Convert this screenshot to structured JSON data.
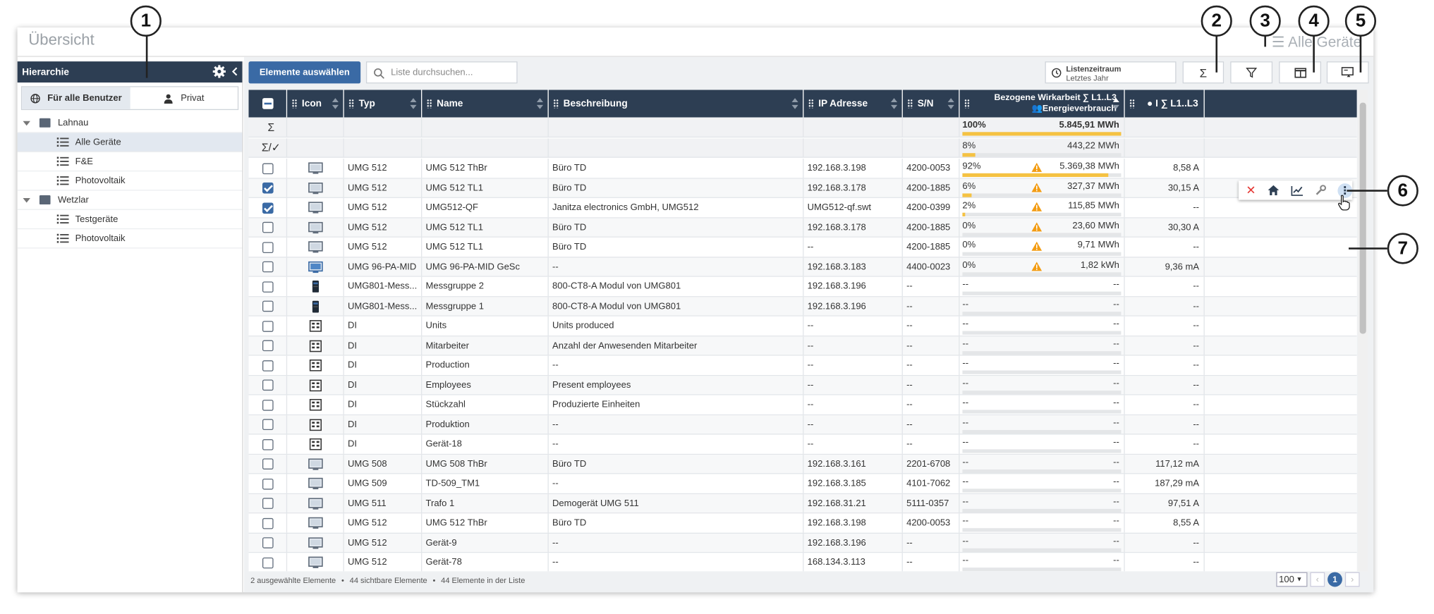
{
  "window": {
    "title": "Übersicht",
    "title_right": "Alle Geräte"
  },
  "sidebar": {
    "header": "Hierarchie",
    "scope_tabs": [
      {
        "label": "Für alle Benutzer",
        "active": true
      },
      {
        "label": "Privat",
        "active": false
      }
    ],
    "tree": [
      {
        "label": "Lahnau",
        "type": "folder",
        "level": 0
      },
      {
        "label": "Alle Geräte",
        "type": "list",
        "level": 1,
        "selected": true
      },
      {
        "label": "F&E",
        "type": "list",
        "level": 1
      },
      {
        "label": "Photovoltaik",
        "type": "list",
        "level": 1
      },
      {
        "label": "Wetzlar",
        "type": "folder",
        "level": 0
      },
      {
        "label": "Testgeräte",
        "type": "list",
        "level": 1
      },
      {
        "label": "Photovoltaik",
        "type": "list",
        "level": 1
      }
    ]
  },
  "toolbar": {
    "select_label": "Elemente auswählen",
    "search_placeholder": "Liste durchsuchen...",
    "period_title": "Listenzeitraum",
    "period_value": "Letztes Jahr",
    "sum_icon": "Σ"
  },
  "grid": {
    "columns": {
      "icon": "Icon",
      "typ": "Typ",
      "name": "Name",
      "beschreibung": "Beschreibung",
      "ip": "IP Adresse",
      "sn": "S/N",
      "energy_line1": "Bezogene Wirkarbeit ∑ L1..L3",
      "energy_line2": "Energieverbrauch",
      "current": "I ∑ L1..L3"
    },
    "sum_rows": [
      {
        "symbol": "Σ",
        "pct": "100%",
        "value": "5.845,91 MWh",
        "fill": 1.0
      },
      {
        "symbol": "Σ/✓",
        "pct": "8%",
        "value": "443,22 MWh",
        "fill": 0.08
      }
    ],
    "rows": [
      {
        "checked": false,
        "icon": "monitor",
        "typ": "UMG 512",
        "name": "UMG 512 ThBr",
        "beschreibung": "Büro TD",
        "ip": "192.168.3.198",
        "sn": "4200-0053",
        "pct": "92%",
        "energy": "5.369,38 MWh",
        "fill": 0.92,
        "warn": true,
        "current": "8,58 A"
      },
      {
        "checked": true,
        "icon": "monitor",
        "typ": "UMG 512",
        "name": "UMG 512 TL1",
        "beschreibung": "Büro TD",
        "ip": "192.168.3.178",
        "sn": "4200-1885",
        "pct": "6%",
        "energy": "327,37 MWh",
        "fill": 0.06,
        "warn": true,
        "current": "30,15 A"
      },
      {
        "checked": true,
        "icon": "monitor",
        "typ": "UMG 512",
        "name": "UMG512-QF",
        "beschreibung": "Janitza electronics GmbH, UMG512",
        "ip": "UMG512-qf.swt",
        "sn": "4200-0399",
        "pct": "2%",
        "energy": "115,85 MWh",
        "fill": 0.02,
        "warn": true,
        "current": "--"
      },
      {
        "checked": false,
        "icon": "monitor",
        "typ": "UMG 512",
        "name": "UMG 512 TL1",
        "beschreibung": "Büro TD",
        "ip": "192.168.3.178",
        "sn": "4200-1885",
        "pct": "0%",
        "energy": "23,60 MWh",
        "fill": 0,
        "warn": true,
        "current": "30,30 A"
      },
      {
        "checked": false,
        "icon": "monitor",
        "typ": "UMG 512",
        "name": "UMG 512 TL1",
        "beschreibung": "Büro TD",
        "ip": "--",
        "sn": "4200-1885",
        "pct": "0%",
        "energy": "9,71 MWh",
        "fill": 0,
        "warn": true,
        "current": "--"
      },
      {
        "checked": false,
        "icon": "monitor-blue",
        "typ": "UMG 96-PA-MID",
        "name": "UMG 96-PA-MID GeSc",
        "beschreibung": "--",
        "ip": "192.168.3.183",
        "sn": "4400-0023",
        "pct": "0%",
        "energy": "1,82 kWh",
        "fill": 0,
        "warn": true,
        "current": "9,36 mA"
      },
      {
        "checked": false,
        "icon": "module",
        "typ": "UMG801-Mess...",
        "name": "Messgruppe 2",
        "beschreibung": "800-CT8-A Modul von UMG801",
        "ip": "192.168.3.196",
        "sn": "--",
        "pct": "--",
        "energy": "--",
        "fill": 0,
        "warn": false,
        "current": "--"
      },
      {
        "checked": false,
        "icon": "module",
        "typ": "UMG801-Mess...",
        "name": "Messgruppe 1",
        "beschreibung": "800-CT8-A Modul von UMG801",
        "ip": "192.168.3.196",
        "sn": "--",
        "pct": "--",
        "energy": "--",
        "fill": 0,
        "warn": false,
        "current": "--"
      },
      {
        "checked": false,
        "icon": "di",
        "typ": "DI",
        "name": "Units",
        "beschreibung": "Units produced",
        "ip": "--",
        "sn": "--",
        "pct": "--",
        "energy": "--",
        "fill": 0,
        "warn": false,
        "current": "--"
      },
      {
        "checked": false,
        "icon": "di",
        "typ": "DI",
        "name": "Mitarbeiter",
        "beschreibung": "Anzahl der Anwesenden Mitarbeiter",
        "ip": "--",
        "sn": "--",
        "pct": "--",
        "energy": "--",
        "fill": 0,
        "warn": false,
        "current": "--"
      },
      {
        "checked": false,
        "icon": "di",
        "typ": "DI",
        "name": "Production",
        "beschreibung": "--",
        "ip": "--",
        "sn": "--",
        "pct": "--",
        "energy": "--",
        "fill": 0,
        "warn": false,
        "current": "--"
      },
      {
        "checked": false,
        "icon": "di",
        "typ": "DI",
        "name": "Employees",
        "beschreibung": "Present employees",
        "ip": "--",
        "sn": "--",
        "pct": "--",
        "energy": "--",
        "fill": 0,
        "warn": false,
        "current": "--"
      },
      {
        "checked": false,
        "icon": "di",
        "typ": "DI",
        "name": "Stückzahl",
        "beschreibung": "Produzierte Einheiten",
        "ip": "--",
        "sn": "--",
        "pct": "--",
        "energy": "--",
        "fill": 0,
        "warn": false,
        "current": "--"
      },
      {
        "checked": false,
        "icon": "di",
        "typ": "DI",
        "name": "Produktion",
        "beschreibung": "--",
        "ip": "--",
        "sn": "--",
        "pct": "--",
        "energy": "--",
        "fill": 0,
        "warn": false,
        "current": "--"
      },
      {
        "checked": false,
        "icon": "di",
        "typ": "DI",
        "name": "Gerät-18",
        "beschreibung": "--",
        "ip": "--",
        "sn": "--",
        "pct": "--",
        "energy": "--",
        "fill": 0,
        "warn": false,
        "current": "--"
      },
      {
        "checked": false,
        "icon": "monitor",
        "typ": "UMG 508",
        "name": "UMG 508 ThBr",
        "beschreibung": "Büro TD",
        "ip": "192.168.3.161",
        "sn": "2201-6708",
        "pct": "--",
        "energy": "--",
        "fill": 0,
        "warn": false,
        "current": "117,12 mA"
      },
      {
        "checked": false,
        "icon": "monitor",
        "typ": "UMG 509",
        "name": "TD-509_TM1",
        "beschreibung": "--",
        "ip": "192.168.3.185",
        "sn": "4101-7062",
        "pct": "--",
        "energy": "--",
        "fill": 0,
        "warn": false,
        "current": "187,29 mA"
      },
      {
        "checked": false,
        "icon": "monitor",
        "typ": "UMG 511",
        "name": "Trafo 1",
        "beschreibung": "Demogerät UMG 511",
        "ip": "192.168.31.21",
        "sn": "5111-0357",
        "pct": "--",
        "energy": "--",
        "fill": 0,
        "warn": false,
        "current": "97,51 A"
      },
      {
        "checked": false,
        "icon": "monitor",
        "typ": "UMG 512",
        "name": "UMG 512 ThBr",
        "beschreibung": "Büro TD",
        "ip": "192.168.3.198",
        "sn": "4200-0053",
        "pct": "--",
        "energy": "--",
        "fill": 0,
        "warn": false,
        "current": "8,55 A"
      },
      {
        "checked": false,
        "icon": "monitor",
        "typ": "UMG 512",
        "name": "Gerät-9",
        "beschreibung": "--",
        "ip": "192.168.3.196",
        "sn": "--",
        "pct": "--",
        "energy": "--",
        "fill": 0,
        "warn": false,
        "current": "--"
      },
      {
        "checked": false,
        "icon": "monitor",
        "typ": "UMG 512",
        "name": "Gerät-78",
        "beschreibung": "--",
        "ip": "168.134.3.113",
        "sn": "--",
        "pct": "--",
        "energy": "--",
        "fill": 0,
        "warn": false,
        "current": "--"
      }
    ]
  },
  "footer": {
    "selected": "2 ausgewählte Elemente",
    "visible": "44 sichtbare Elemente",
    "total": "44 Elemente in der Liste",
    "page_size": "100",
    "page": "1"
  },
  "callouts": [
    "1",
    "2",
    "3",
    "4",
    "5",
    "6",
    "7"
  ],
  "colors": {
    "header": "#2d3e53",
    "primary": "#3a6aa5",
    "bar": "#f5c242",
    "warn": "#f39c12",
    "delete": "#e53935"
  }
}
